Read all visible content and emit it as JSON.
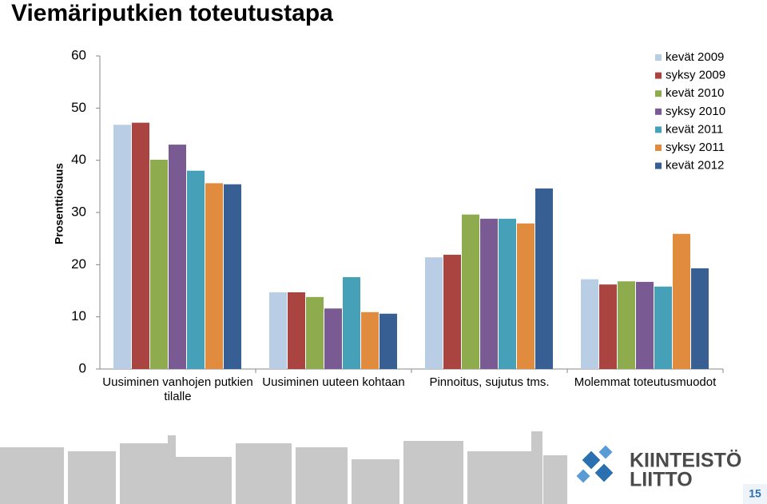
{
  "chart_data": {
    "type": "bar",
    "title": "Viemäriputkien toteutustapa",
    "y_label": "Prosenttiosuus",
    "categories": [
      "Uusiminen vanhojen putkien tilalle",
      "Uusiminen uuteen kohtaan",
      "Pinnoitus, sujutus tms.",
      "Molemmat toteutusmuodot"
    ],
    "series": [
      {
        "name": "kevät 2009",
        "color": "#b9cde5",
        "values": [
          46.8,
          14.7,
          21.4,
          17.2
        ]
      },
      {
        "name": "syksy 2009",
        "color": "#a94441",
        "values": [
          47.2,
          14.7,
          21.9,
          16.2
        ]
      },
      {
        "name": "kevät 2010",
        "color": "#8eab4e",
        "values": [
          40.1,
          13.8,
          29.6,
          16.8
        ]
      },
      {
        "name": "syksy 2010",
        "color": "#7a5a93",
        "values": [
          43.0,
          11.6,
          28.8,
          16.7
        ]
      },
      {
        "name": "kevät 2011",
        "color": "#46a0b7",
        "values": [
          38.0,
          17.6,
          28.8,
          15.8
        ]
      },
      {
        "name": "syksy 2011",
        "color": "#e08b3d",
        "values": [
          35.6,
          10.9,
          27.9,
          25.9
        ]
      },
      {
        "name": "kevät 2012",
        "color": "#375f94",
        "values": [
          35.4,
          10.6,
          34.6,
          19.3
        ]
      }
    ],
    "ylim": [
      0,
      60
    ],
    "yticks": [
      0,
      10,
      20,
      30,
      40,
      50,
      60
    ],
    "grid": false,
    "legend": "top-right"
  },
  "footer": {
    "logo_line1": "KIINTEISTÖ",
    "logo_line2": "LIITTO",
    "page_number": "15"
  }
}
